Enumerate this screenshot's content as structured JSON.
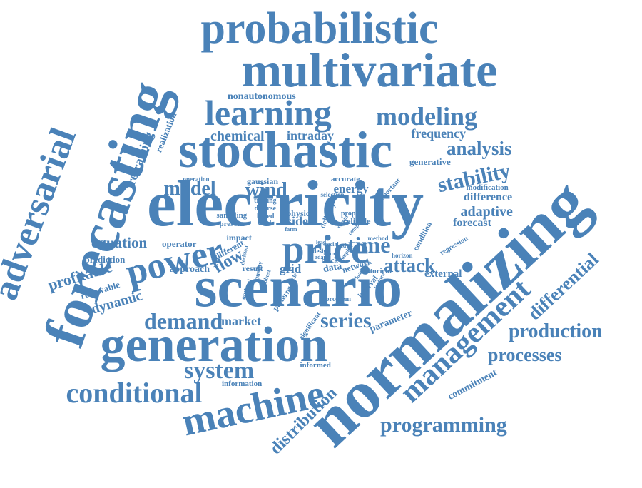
{
  "color": "#4a82b8",
  "words": [
    "probabilistic",
    "multivariate",
    "learning",
    "modeling",
    "stochastic",
    "electricity",
    "forecasting",
    "adversarial",
    "normalizing",
    "scenario",
    "generation",
    "management",
    "machine",
    "price",
    "power",
    "stability",
    "analysis",
    "frequency",
    "model",
    "wind",
    "energy",
    "chemical",
    "intraday",
    "time",
    "attack",
    "differential",
    "production",
    "processes",
    "programming",
    "conditional",
    "system",
    "demand",
    "market",
    "series",
    "dynamic",
    "distribution",
    "retraining",
    "realization",
    "nonautonomous",
    "generative",
    "adaptive",
    "difference",
    "modification",
    "forecast",
    "equation",
    "flow",
    "approach",
    "profitable",
    "renewable",
    "prediction",
    "operator",
    "side",
    "data",
    "grid",
    "result",
    "external",
    "parameter",
    "commitment",
    "informed",
    "information",
    "condition",
    "regression",
    "horizon",
    "method",
    "network",
    "historical",
    "interval",
    "significant",
    "pattern",
    "problem",
    "impact",
    "different",
    "decision",
    "based",
    "work",
    "physic",
    "reliable",
    "delivery",
    "propose",
    "gaussian",
    "accurate",
    "selection",
    "important",
    "trading",
    "diverse",
    "black",
    "sampling",
    "present",
    "operation",
    "design",
    "adapt",
    "social",
    "quality",
    "optimal",
    "farm",
    "box",
    "flexible",
    "feature",
    "coupled",
    "lead",
    "loading",
    "recent",
    "robust",
    "complex",
    "load"
  ]
}
